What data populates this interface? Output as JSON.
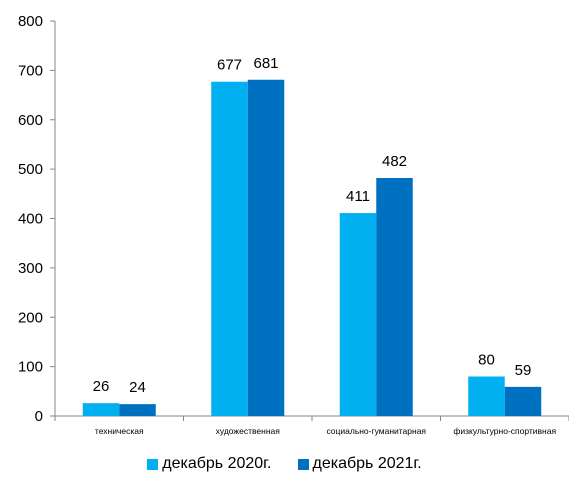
{
  "chart_data": {
    "type": "bar",
    "title": "",
    "xlabel": "",
    "ylabel": "",
    "ylim": [
      0,
      800
    ],
    "yticks": [
      0,
      100,
      200,
      300,
      400,
      500,
      600,
      700,
      800
    ],
    "grid": false,
    "legend_position": "bottom",
    "categories": [
      "техническая",
      "художественная",
      "социально-гуманитарная",
      "физкультурно-спортивная"
    ],
    "series": [
      {
        "name": "декабрь 2020г.",
        "color": "#00B0F0",
        "values": [
          26,
          677,
          411,
          80
        ]
      },
      {
        "name": "декабрь 2021г.",
        "color": "#0070C0",
        "values": [
          24,
          681,
          482,
          59
        ]
      }
    ]
  }
}
